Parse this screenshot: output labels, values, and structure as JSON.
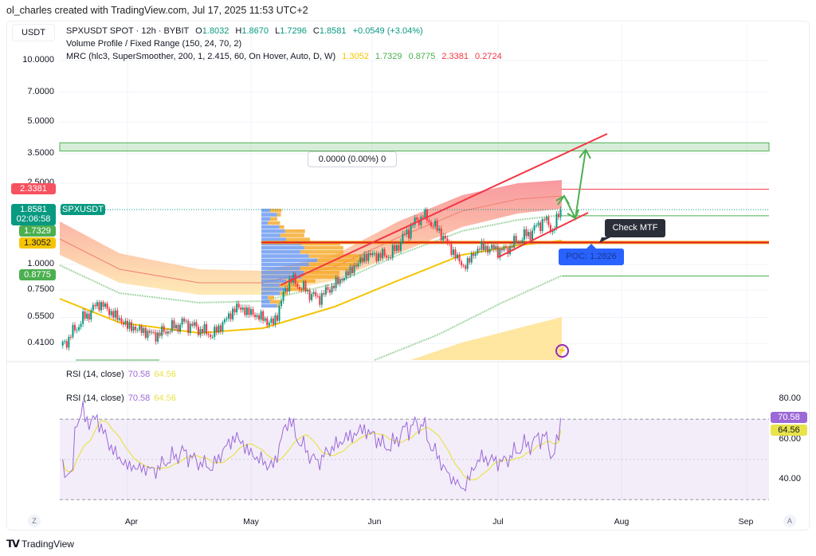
{
  "credit": "ol_charles created with TradingView.com, Jul 17, 2025 11:53 UTC+2",
  "currency": "USDT",
  "legend": {
    "symbol": "SPXUSDT SPOT · 12h · BYBIT",
    "o_label": "O",
    "o": "1.8032",
    "h_label": "H",
    "h": "1.8670",
    "l_label": "L",
    "l": "1.7296",
    "c_label": "C",
    "c": "1.8581",
    "change": "+0.0549 (+3.04%)",
    "vp": "Volume Profile / Fixed Range (150, 24, 70, 2)",
    "mrc": "MRC (hlc3, SuperSmoother, 200, 1, 2.415, 60, On Hover, Auto, D, W)",
    "mrc_values": [
      "1.3052",
      "1.7329",
      "0.8775",
      "2.3381",
      "0.2724"
    ],
    "rsi": "RSI (14, close)",
    "rsi_value": "70.58",
    "rsi_ma": "64.56"
  },
  "price_labels": {
    "upper": "2.3381",
    "last": "1.8581",
    "countdown": "02:06:58",
    "symbol_tag": "SPXUSDT",
    "green_upper": "1.7329",
    "mean": "1.3052",
    "green_lower": "0.8775"
  },
  "rsi_labels": {
    "rsi": "70.58",
    "ma": "64.56"
  },
  "annotations": {
    "measure": "0.0000 (0.00%) 0",
    "check_mtf": "Check MTF",
    "poc": "POC: 1.2826"
  },
  "axis_buttons": {
    "left": "Z",
    "right": "A"
  },
  "brand": "TradingView",
  "colors": {
    "up": "#089981",
    "down": "#f23645",
    "rsi": "#9c6ad6",
    "rsi_ma": "#e8e34a",
    "poc": "#2962ff",
    "trend": "#f23645",
    "target": "#4caf50"
  },
  "chart_data": [
    {
      "type": "candlestick",
      "interval": "12h",
      "symbol": "SPXUSDT",
      "yscale": "log",
      "y_ticks": [
        "10.0000",
        "7.0000",
        "5.0000",
        "3.5000",
        "2.5000",
        "1.0000",
        "0.7500",
        "0.5500",
        "0.4100"
      ],
      "x_ticks": [
        "Apr",
        "May",
        "Jun",
        "Jul",
        "Aug",
        "Sep"
      ],
      "close_path": [
        [
          "2025-03-16",
          0.4
        ],
        [
          "2025-03-21",
          0.54
        ],
        [
          "2025-03-25",
          0.65
        ],
        [
          "2025-04-01",
          0.5
        ],
        [
          "2025-04-08",
          0.45
        ],
        [
          "2025-04-15",
          0.52
        ],
        [
          "2025-04-22",
          0.45
        ],
        [
          "2025-04-28",
          0.62
        ],
        [
          "2025-05-04",
          0.55
        ],
        [
          "2025-05-07",
          0.51
        ],
        [
          "2025-05-11",
          0.85
        ],
        [
          "2025-05-18",
          0.68
        ],
        [
          "2025-05-25",
          0.89
        ],
        [
          "2025-05-30",
          1.11
        ],
        [
          "2025-06-05",
          1.11
        ],
        [
          "2025-06-10",
          1.53
        ],
        [
          "2025-06-13",
          1.75
        ],
        [
          "2025-06-17",
          1.46
        ],
        [
          "2025-06-21",
          1.11
        ],
        [
          "2025-06-23",
          0.97
        ],
        [
          "2025-06-27",
          1.22
        ],
        [
          "2025-07-03",
          1.17
        ],
        [
          "2025-07-10",
          1.46
        ],
        [
          "2025-07-13",
          1.67
        ],
        [
          "2025-07-15",
          1.46
        ],
        [
          "2025-07-17",
          1.8581
        ]
      ],
      "levels": {
        "mrc_upper": 2.3381,
        "mrc_mean": 1.3052,
        "mrc_green_upper": 1.7329,
        "mrc_green_lower": 0.8775,
        "poc": 1.2826,
        "target_zone": [
          3.6,
          3.95
        ]
      }
    },
    {
      "type": "line",
      "name": "RSI (14, close)",
      "y_ticks": [
        "80.00",
        "60.00",
        "40.00"
      ],
      "bands": [
        70,
        30
      ],
      "last": 70.58,
      "ma_last": 64.56
    }
  ]
}
